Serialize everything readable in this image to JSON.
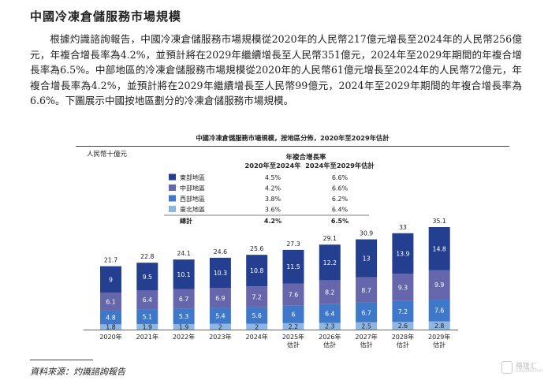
{
  "heading": "中國冷凍倉儲服務市場規模",
  "paragraph": "根據灼識諮詢報告，中國冷凍倉儲服務市場規模從2020年的人民幣217億元增長至2024年的人民幣256億元，年複合增長率為4.2%，並預計將在2029年繼續增長至人民幣351億元，2024年至2029年期間的年複合增長率為6.5%。中部地區的冷凍倉儲服務市場規模從2020年的人民幣61億元增長至2024年的人民幣72億元，年複合增長率為4.2%，並預計將在2029年繼續增長至人民幣99億元，2024年至2029年期間的年複合增長率為6.6%。下圖展示中國按地區劃分的冷凍倉儲服務市場規模。",
  "source": "資料來源：灼識諮詢報告",
  "watermark": {
    "text": "格隆汇",
    "sub": "GELONGHUI",
    "icon": "watermark-logo-icon"
  },
  "chart_data": {
    "type": "bar",
    "stacked": true,
    "title": "中國冷凍倉儲服務市場規模，按地區分佈，2020年至2029年估計",
    "unit_label": "人民幣十億元",
    "categories": [
      "2020年",
      "2021年",
      "2022年",
      "2023年",
      "2024年",
      "2025年\n估計",
      "2026年\n估計",
      "2027年\n估計",
      "2028年\n估計",
      "2029年\n估計"
    ],
    "series": [
      {
        "name": "東北地區",
        "color": "#8db6e2",
        "values": [
          1.8,
          1.9,
          1.9,
          2.0,
          2.0,
          2.2,
          2.3,
          2.5,
          2.6,
          2.8
        ]
      },
      {
        "name": "西部地區",
        "color": "#3f78c9",
        "values": [
          4.8,
          5.1,
          5.3,
          5.4,
          5.6,
          6.0,
          6.4,
          6.7,
          7.2,
          7.6
        ]
      },
      {
        "name": "中部地區",
        "color": "#6566ab",
        "values": [
          6.1,
          6.4,
          6.7,
          6.9,
          7.2,
          7.6,
          8.2,
          8.7,
          9.3,
          9.9
        ]
      },
      {
        "name": "東部地區",
        "color": "#243f8f",
        "values": [
          9.0,
          9.5,
          10.1,
          10.3,
          10.8,
          11.5,
          12.2,
          13.0,
          13.9,
          14.8
        ]
      }
    ],
    "totals": [
      21.7,
      22.8,
      24.1,
      24.6,
      25.6,
      27.3,
      29.1,
      30.9,
      33.0,
      35.1
    ],
    "ylim": [
      0,
      35.1
    ],
    "cagr_table": {
      "title": "年複合增長率",
      "headers": [
        "2020年至2024年",
        "2024年至2029年估計"
      ],
      "rows": [
        {
          "label": "東部地區",
          "color": "#243f8f",
          "values": [
            "4.5%",
            "6.6%"
          ]
        },
        {
          "label": "中部地區",
          "color": "#6566ab",
          "values": [
            "4.2%",
            "6.6%"
          ]
        },
        {
          "label": "西部地區",
          "color": "#3f78c9",
          "values": [
            "3.8%",
            "6.2%"
          ]
        },
        {
          "label": "東北地區",
          "color": "#8db6e2",
          "values": [
            "3.6%",
            "6.4%"
          ]
        }
      ],
      "total": {
        "label": "總計",
        "values": [
          "4.2%",
          "6.5%"
        ]
      }
    }
  }
}
